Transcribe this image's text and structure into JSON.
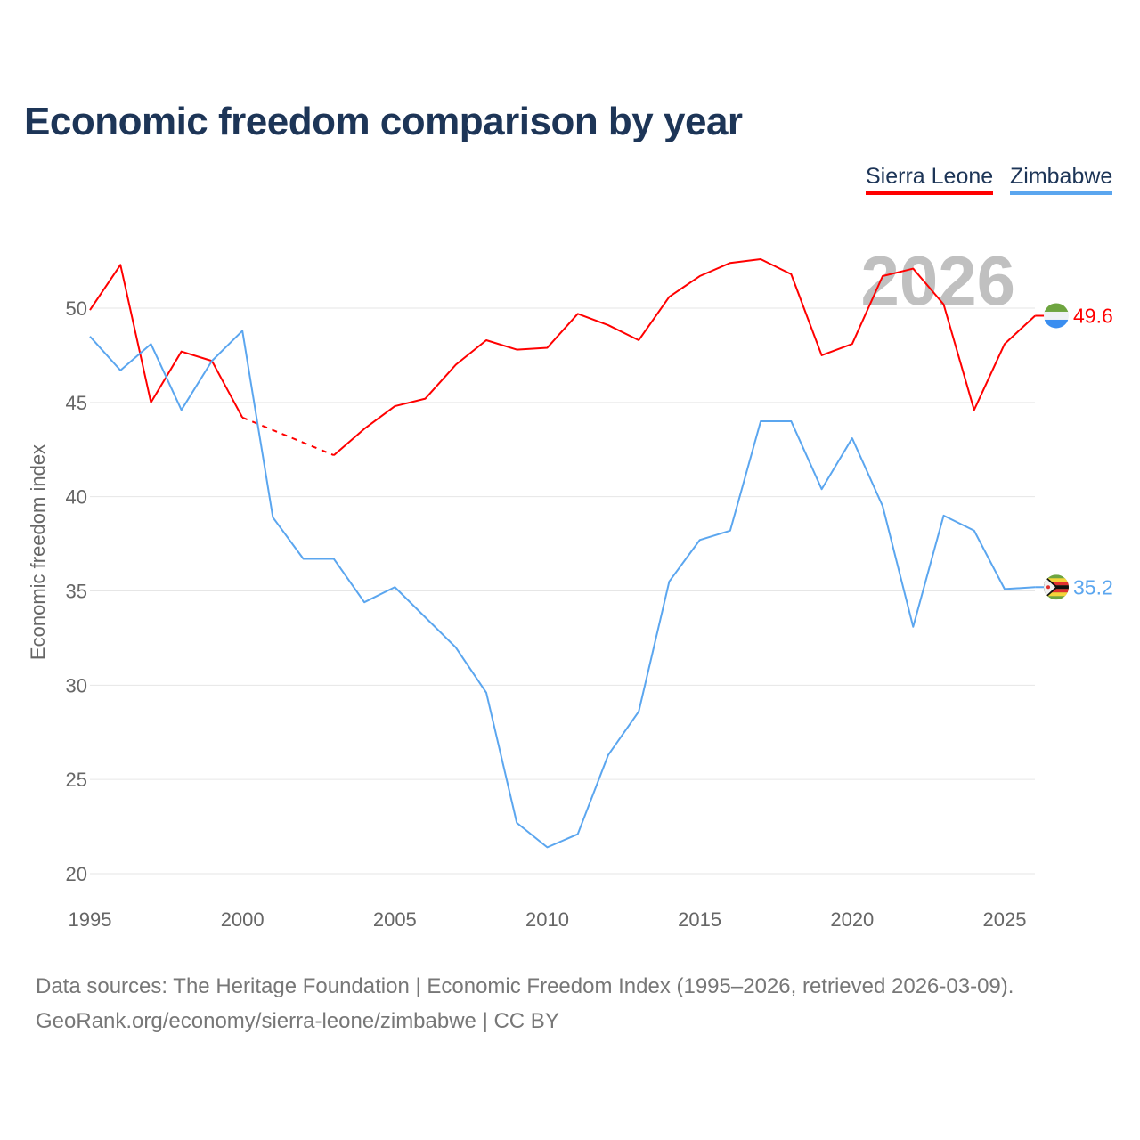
{
  "chart_data": {
    "type": "line",
    "title": "Economic freedom comparison by year",
    "ylabel": "Economic freedom index",
    "xlabel": "",
    "ylim": [
      20,
      53
    ],
    "xlim": [
      1995,
      2026
    ],
    "yticks": [
      20,
      25,
      30,
      35,
      40,
      45,
      50
    ],
    "xticks": [
      1995,
      2000,
      2005,
      2010,
      2015,
      2020,
      2025
    ],
    "grid": true,
    "legend_position": "top-right",
    "year_watermark": "2026",
    "x": [
      1995,
      1996,
      1997,
      1998,
      1999,
      2000,
      2001,
      2002,
      2003,
      2004,
      2005,
      2006,
      2007,
      2008,
      2009,
      2010,
      2011,
      2012,
      2013,
      2014,
      2015,
      2016,
      2017,
      2018,
      2019,
      2020,
      2021,
      2022,
      2023,
      2024,
      2025,
      2026
    ],
    "series": [
      {
        "name": "Sierra Leone",
        "color": "#ff0000",
        "end_label": "49.6",
        "values": [
          49.9,
          52.3,
          45.0,
          47.7,
          47.2,
          44.2,
          null,
          null,
          42.2,
          43.6,
          44.8,
          45.2,
          47.0,
          48.3,
          47.8,
          47.9,
          49.7,
          49.1,
          48.3,
          50.6,
          51.7,
          52.4,
          52.6,
          51.8,
          47.5,
          48.1,
          51.7,
          52.1,
          50.2,
          44.6,
          48.1,
          49.6
        ]
      },
      {
        "name": "Zimbabwe",
        "color": "#5ba6ef",
        "end_label": "35.2",
        "values": [
          48.5,
          46.7,
          48.1,
          44.6,
          47.2,
          48.8,
          38.9,
          36.7,
          36.7,
          34.4,
          35.2,
          33.6,
          32.0,
          29.6,
          22.7,
          21.4,
          22.1,
          26.3,
          28.6,
          35.5,
          37.7,
          38.2,
          44.0,
          44.0,
          40.4,
          43.1,
          39.5,
          33.1,
          39.0,
          38.2,
          35.1,
          35.2
        ]
      }
    ]
  },
  "footer": {
    "line1": "Data sources: The Heritage Foundation | Economic Freedom Index (1995–2026, retrieved 2026-03-09).",
    "line2": "GeoRank.org/economy/sierra-leone/zimbabwe | CC BY"
  }
}
